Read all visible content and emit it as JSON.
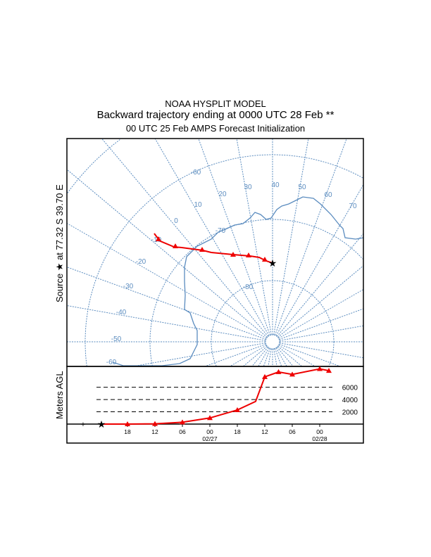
{
  "title": {
    "line1": "NOAA HYSPLIT MODEL",
    "line2": "Backward trajectory ending at 0000 UTC 28 Feb **",
    "line3": "00 UTC 25 Feb    AMPS  Forecast Initialization"
  },
  "source_label": "Source ★ at  77.32 S   39.70 E",
  "colors": {
    "grid": "#5b8cbf",
    "trajectory": "#ee0000",
    "frame": "#000000"
  },
  "map": {
    "latitude_labels": [
      "-60",
      "-70",
      "-80"
    ],
    "longitude_labels": [
      "10",
      "20",
      "30",
      "40",
      "50",
      "60",
      "70",
      "0",
      "-10",
      "-20",
      "-30",
      "-40",
      "-50",
      "-60"
    ],
    "source": {
      "lat": -77.32,
      "lon": 39.7
    }
  },
  "chart_data": {
    "type": "line",
    "title": "Backward trajectory ending at 0000 UTC 28 Feb",
    "ylabel": "Meters AGL",
    "y_ticks": [
      "2000",
      "4000",
      "6000"
    ],
    "y_tick_values": [
      2000,
      4000,
      6000
    ],
    "x_ticks": [
      {
        "hour_offset": -54,
        "label": "18",
        "date": ""
      },
      {
        "hour_offset": -48,
        "label": "12",
        "date": ""
      },
      {
        "hour_offset": -42,
        "label": "06",
        "date": ""
      },
      {
        "hour_offset": -36,
        "label": "00",
        "date": "02/27"
      },
      {
        "hour_offset": -30,
        "label": "18",
        "date": ""
      },
      {
        "hour_offset": -24,
        "label": "12",
        "date": ""
      },
      {
        "hour_offset": -18,
        "label": "06",
        "date": ""
      },
      {
        "hour_offset": -12,
        "label": "00",
        "date": "02/28"
      }
    ],
    "series": [
      {
        "name": "trajectory height",
        "x_hours": [
          -60,
          -54,
          -48,
          -42,
          -36,
          -30,
          -26,
          -24,
          -21,
          -18,
          -12,
          -10
        ],
        "y_m": [
          0,
          0,
          50,
          300,
          1000,
          2300,
          3700,
          7700,
          8500,
          8100,
          9000,
          8700
        ]
      }
    ]
  }
}
